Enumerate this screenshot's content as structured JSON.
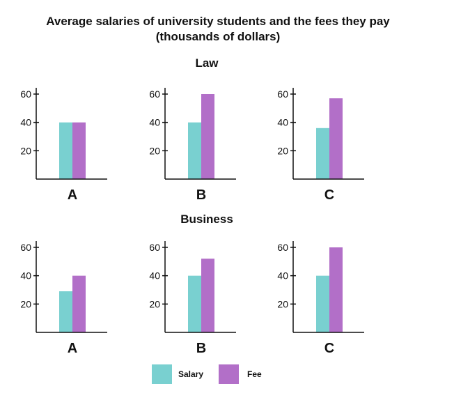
{
  "chart_data": {
    "type": "bar",
    "title": "Average salaries of university students and the fees they pay",
    "subtitle": "(thousands of dollars)",
    "ylim": [
      0,
      60
    ],
    "yticks": [
      20,
      40,
      60
    ],
    "grid": false,
    "legend_position": "bottom-center",
    "colors": {
      "Salary": "#79d0d0",
      "Fee": "#b26fc8"
    },
    "legend": [
      "Salary",
      "Fee"
    ],
    "groups": [
      {
        "name": "Law",
        "panels": [
          {
            "category": "A",
            "series": [
              {
                "name": "Salary",
                "value": 40
              },
              {
                "name": "Fee",
                "value": 40
              }
            ]
          },
          {
            "category": "B",
            "series": [
              {
                "name": "Salary",
                "value": 40
              },
              {
                "name": "Fee",
                "value": 60
              }
            ]
          },
          {
            "category": "C",
            "series": [
              {
                "name": "Salary",
                "value": 36
              },
              {
                "name": "Fee",
                "value": 57
              }
            ]
          }
        ]
      },
      {
        "name": "Business",
        "panels": [
          {
            "category": "A",
            "series": [
              {
                "name": "Salary",
                "value": 29
              },
              {
                "name": "Fee",
                "value": 40
              }
            ]
          },
          {
            "category": "B",
            "series": [
              {
                "name": "Salary",
                "value": 40
              },
              {
                "name": "Fee",
                "value": 52
              }
            ]
          },
          {
            "category": "C",
            "series": [
              {
                "name": "Salary",
                "value": 40
              },
              {
                "name": "Fee",
                "value": 60
              }
            ]
          }
        ]
      }
    ]
  }
}
